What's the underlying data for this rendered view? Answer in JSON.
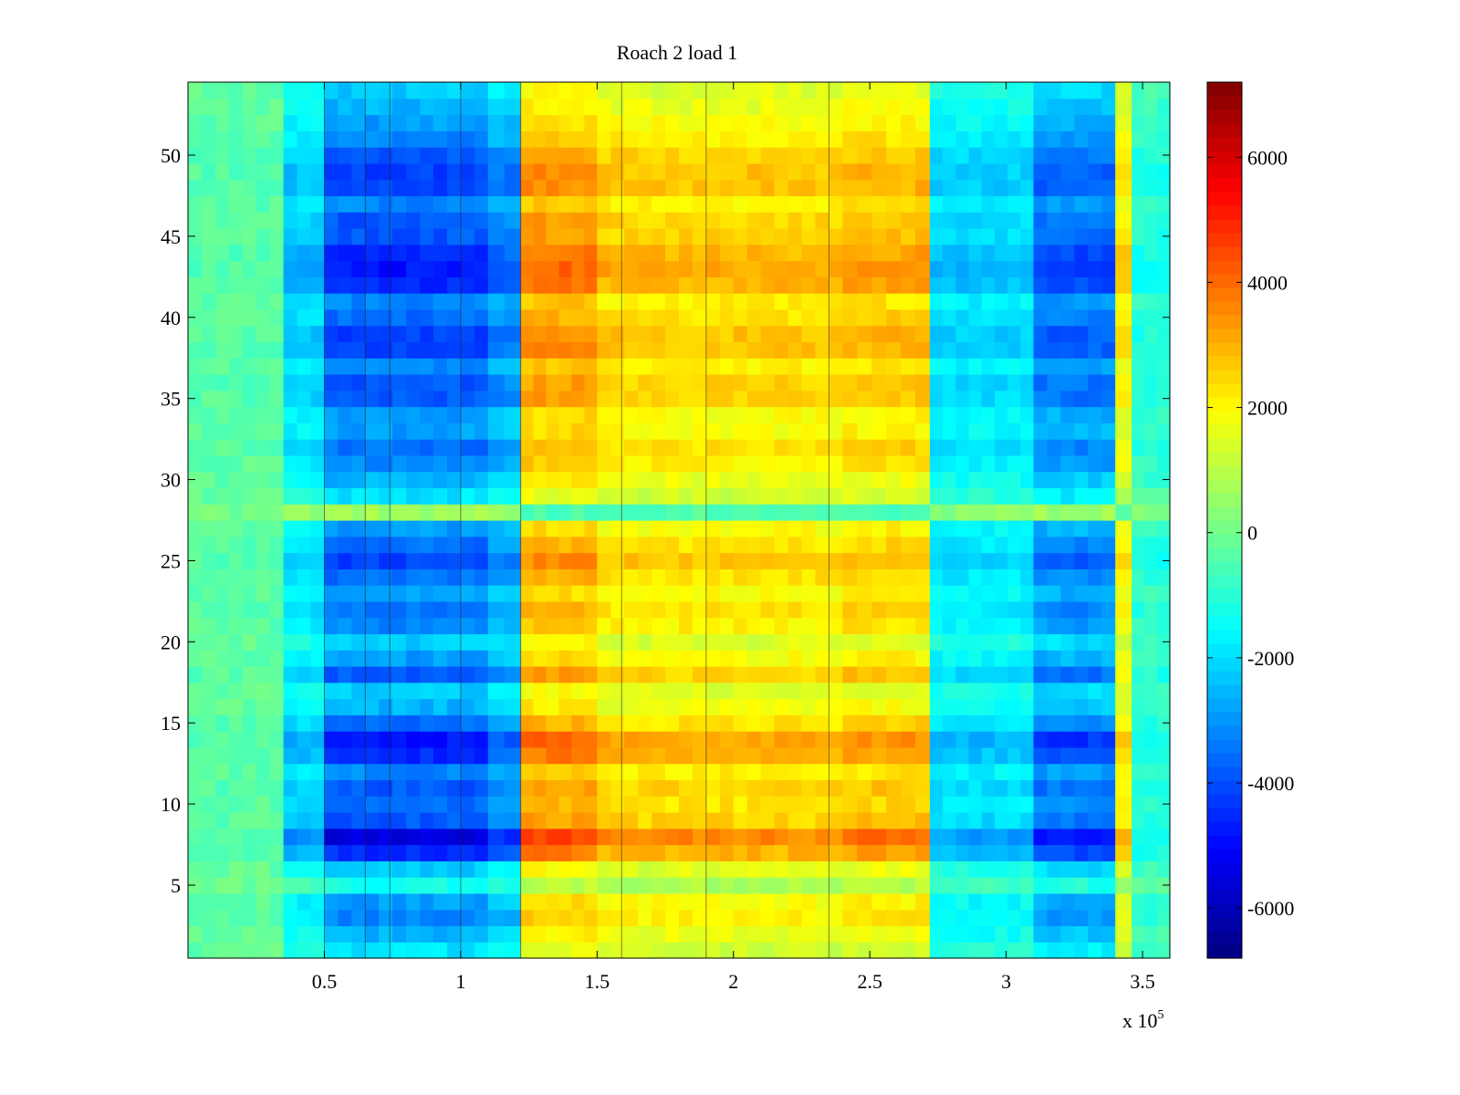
{
  "chart_data": {
    "type": "heatmap",
    "title": "Roach 2 load 1",
    "xlabel": "",
    "ylabel": "",
    "x_multiplier_label": "x 10",
    "x_multiplier_exponent": "5",
    "xlim": [
      0,
      3.6
    ],
    "ylim": [
      0.5,
      54.5
    ],
    "x_ticks": [
      0.5,
      1,
      1.5,
      2,
      2.5,
      3,
      3.5
    ],
    "x_tick_labels": [
      "0.5",
      "1",
      "1.5",
      "2",
      "2.5",
      "3",
      "3.5"
    ],
    "y_ticks": [
      5,
      10,
      15,
      20,
      25,
      30,
      35,
      40,
      45,
      50
    ],
    "y_tick_labels": [
      "5",
      "10",
      "15",
      "20",
      "25",
      "30",
      "35",
      "40",
      "45",
      "50"
    ],
    "rows": 54,
    "colormap": "jet",
    "colorbar": {
      "range": [
        -6800,
        7200
      ],
      "ticks": [
        -6000,
        -4000,
        -2000,
        0,
        2000,
        4000,
        6000
      ],
      "tick_labels": [
        "-6000",
        "-4000",
        "-2000",
        "0",
        "2000",
        "4000",
        "6000"
      ]
    },
    "column_regions": [
      {
        "x_start": 0.0,
        "x_end": 0.35,
        "base_value": -300
      },
      {
        "x_start": 0.35,
        "x_end": 0.5,
        "base_value": -1800
      },
      {
        "x_start": 0.5,
        "x_end": 1.1,
        "base_value": -3200
      },
      {
        "x_start": 1.1,
        "x_end": 1.22,
        "base_value": -2600
      },
      {
        "x_start": 1.22,
        "x_end": 1.5,
        "base_value": 2700
      },
      {
        "x_start": 1.5,
        "x_end": 2.4,
        "base_value": 2100
      },
      {
        "x_start": 2.4,
        "x_end": 2.72,
        "base_value": 2300
      },
      {
        "x_start": 2.72,
        "x_end": 3.1,
        "base_value": -1700
      },
      {
        "x_start": 3.1,
        "x_end": 3.4,
        "base_value": -2900
      },
      {
        "x_start": 3.4,
        "x_end": 3.46,
        "base_value": 1800
      },
      {
        "x_start": 3.46,
        "x_end": 3.6,
        "base_value": -900
      }
    ],
    "row_modulation": [
      0.6,
      0.8,
      1.0,
      0.9,
      0.4,
      0.7,
      1.4,
      1.7,
      1.2,
      1.1,
      1.2,
      1.0,
      1.4,
      1.5,
      1.1,
      0.8,
      0.7,
      1.2,
      0.9,
      0.7,
      1.0,
      1.1,
      0.9,
      1.1,
      1.3,
      1.1,
      0.9,
      -0.2,
      0.6,
      0.8,
      1.0,
      1.1,
      0.9,
      0.9,
      1.2,
      1.2,
      1.0,
      1.3,
      1.3,
      1.1,
      1.0,
      1.4,
      1.5,
      1.4,
      1.2,
      1.2,
      1.0,
      1.3,
      1.3,
      1.2,
      1.0,
      0.9,
      0.8,
      0.7
    ],
    "vertical_line_x": [
      0.5,
      0.65,
      0.74,
      1.0,
      1.22,
      1.59,
      1.9,
      2.35
    ]
  }
}
